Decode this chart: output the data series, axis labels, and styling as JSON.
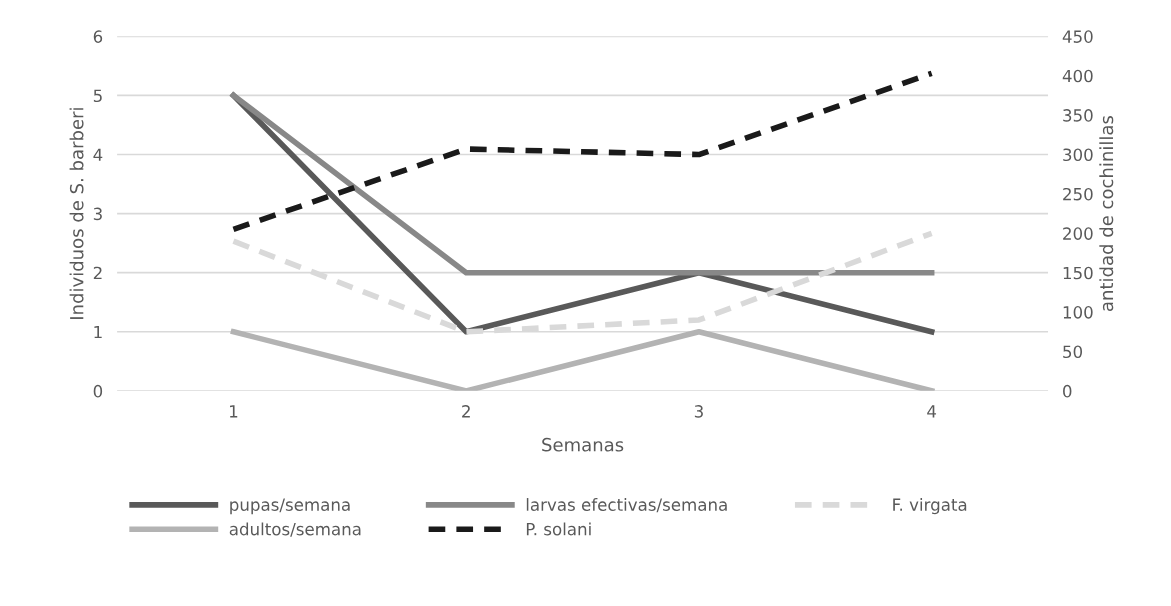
{
  "chart_data": {
    "type": "line",
    "xlabel": "Semanas",
    "ylabel": "Individuos de S. barberi",
    "y2label": "antidad de cochinillas",
    "categories": [
      "1",
      "2",
      "3",
      "4"
    ],
    "ylim": [
      0,
      6
    ],
    "yticks": [
      0,
      1,
      2,
      3,
      4,
      5,
      6
    ],
    "y2lim": [
      0,
      450
    ],
    "y2ticks": [
      0,
      50,
      100,
      150,
      200,
      250,
      300,
      350,
      400,
      450
    ],
    "grid": "y",
    "legend": "bottom",
    "marker": "none",
    "series": [
      {
        "name": "pupas/semana",
        "color": "#595959",
        "values": [
          5,
          1,
          2,
          1
        ],
        "line_style": "solid"
      },
      {
        "name": "adultos/semana",
        "color": "#b3b3b3",
        "values": [
          1,
          0,
          1,
          0
        ],
        "line_style": "solid"
      },
      {
        "name": "larvas efectivas/semana",
        "color": "#888888",
        "values": [
          5,
          2,
          2,
          2
        ],
        "line_style": "solid"
      },
      {
        "name": "P. solani",
        "color": "#1a1a1a",
        "values": [
          205,
          307,
          300,
          403
        ],
        "axis": "y2",
        "line_style": "dashed"
      },
      {
        "name": "F. virgata",
        "color": "#d9d9d9",
        "values": [
          190,
          75,
          90,
          200
        ],
        "axis": "y2",
        "line_style": "dashed"
      }
    ]
  }
}
